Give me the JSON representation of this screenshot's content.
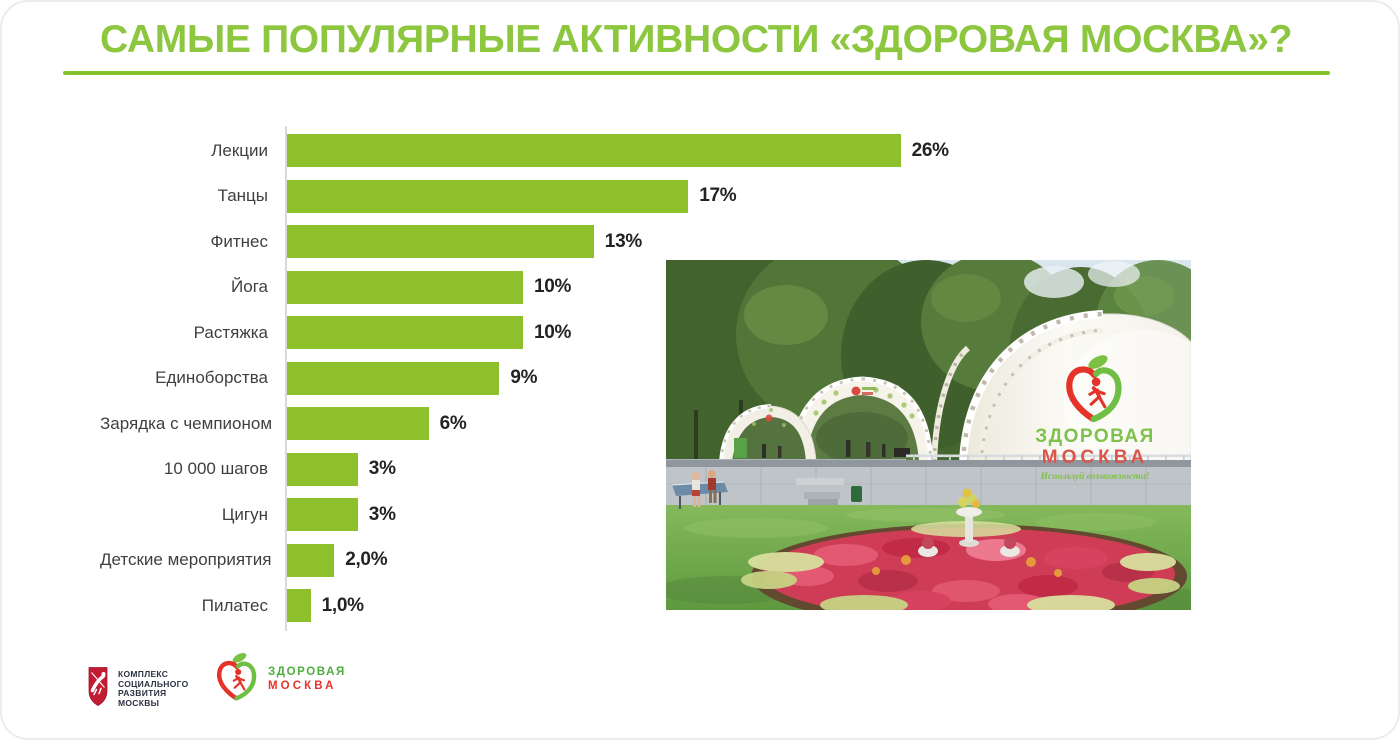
{
  "slide": {
    "title": "САМЫЕ ПОПУЛЯРНЫЕ АКТИВНОСТИ «ЗДОРОВАЯ МОСКВА»?"
  },
  "chart_data": {
    "type": "bar",
    "orientation": "horizontal",
    "categories": [
      "Лекции",
      "Танцы",
      "Фитнес",
      "Йога",
      "Растяжка",
      "Единоборства",
      "Зарядка с чемпионом",
      "10 000 шагов",
      "Цигун",
      "Детские мероприятия",
      "Пилатес"
    ],
    "values": [
      26,
      17,
      13,
      10,
      10,
      9,
      6,
      3,
      3,
      2,
      1
    ],
    "value_labels": [
      "26%",
      "17%",
      "13%",
      "10%",
      "10%",
      "9%",
      "6%",
      "3%",
      "3%",
      "2,0%",
      "1,0%"
    ],
    "bar_color": "#8EC02C",
    "xlim": [
      0,
      27
    ],
    "grid": false,
    "legend": "none",
    "title": "",
    "xlabel": "",
    "ylabel": ""
  },
  "photo": {
    "description": "park-pavilion-photo",
    "tent_logo_line1": "ЗДОРОВАЯ",
    "tent_logo_line2": "МОСКВА",
    "tent_tagline": "Используй возможности!"
  },
  "footer": {
    "gov_logo_lines": [
      "КОМПЛЕКС",
      "СОЦИАЛЬНОГО",
      "РАЗВИТИЯ",
      "МОСКВЫ"
    ],
    "brand_line1": "ЗДОРОВАЯ",
    "brand_line2": "МОСКВА"
  },
  "colors": {
    "accent_green": "#8DC63F",
    "bar_green": "#8EC02C",
    "logo_green": "#4CAF3C",
    "logo_red": "#E6332A"
  }
}
